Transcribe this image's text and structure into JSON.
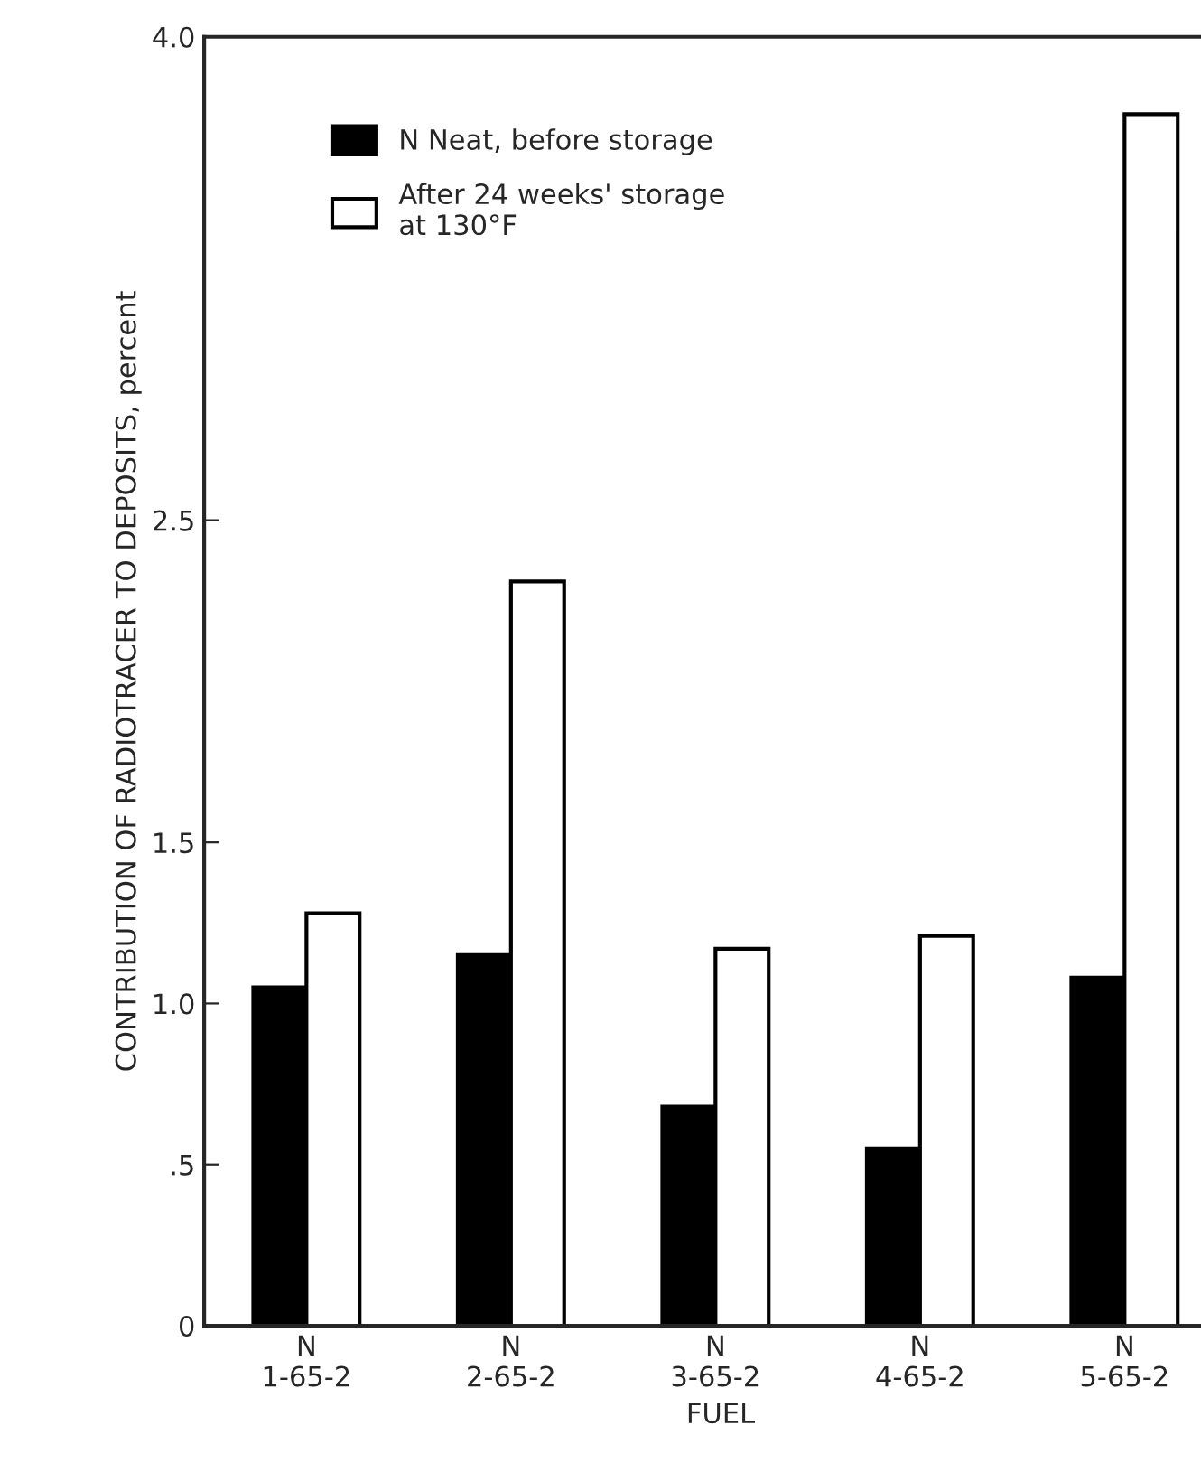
{
  "chart_data": {
    "type": "bar",
    "categories": [
      "N\n1-65-2",
      "N\n2-65-2",
      "N\n3-65-2",
      "N\n4-65-2",
      "N\n5-65-2"
    ],
    "series": [
      {
        "name": "N Neat, before storage",
        "color": "#000000",
        "values": [
          1.05,
          1.15,
          0.68,
          0.55,
          1.08
        ]
      },
      {
        "name": "After 24 weeks' storage\nat 130°F",
        "color": "#ffffff",
        "values": [
          1.28,
          2.31,
          1.17,
          1.21,
          3.76
        ]
      }
    ],
    "xlabel": "FUEL",
    "ylabel": "CONTRIBUTION OF RADIOTRACER TO DEPOSITS, percent",
    "ylim": [
      0,
      4.0
    ],
    "yticks": [
      0,
      {
        "value": 0.5,
        "label": ".5"
      },
      {
        "value": 1.0,
        "label": "1.0"
      },
      1.5,
      2.5,
      {
        "value": 4.0,
        "label": "4.0"
      }
    ],
    "legend": "top left",
    "grid": false
  }
}
